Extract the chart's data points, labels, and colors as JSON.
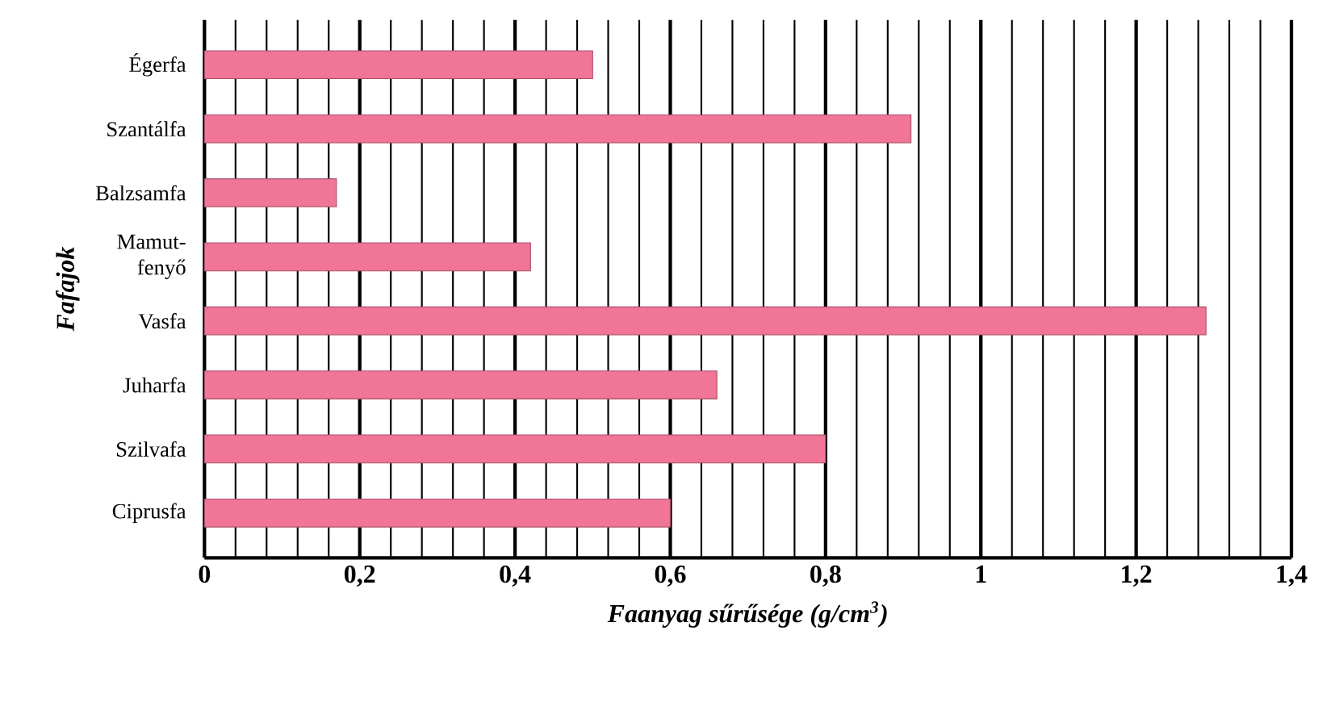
{
  "chart_data": {
    "type": "bar",
    "orientation": "horizontal",
    "xlabel": "Faanyag sűrűsége  (g/cm$^{3}$)",
    "ylabel": "Fafajok",
    "categories": [
      "Égerfa",
      "Szantálfa",
      "Balzsamfa",
      "Mamut-fenyő",
      "Vasfa",
      "Juharfa",
      "Szilvafa",
      "Ciprusfa"
    ],
    "values": [
      0.5,
      0.91,
      0.17,
      0.42,
      1.29,
      0.66,
      0.8,
      0.6
    ],
    "color": "#f07596",
    "xlim": [
      0,
      1.4
    ],
    "xticks": [
      0,
      {
        "value": 0.2,
        "label": "0,2"
      },
      {
        "value": 0.4,
        "label": "0,4"
      },
      {
        "value": 0.6,
        "label": "0,6"
      },
      {
        "value": 0.8,
        "label": "0,8"
      },
      1,
      {
        "value": 1.2,
        "label": "1,2"
      },
      {
        "value": 1.4,
        "label": "1,4"
      }
    ],
    "grid": "x"
  }
}
